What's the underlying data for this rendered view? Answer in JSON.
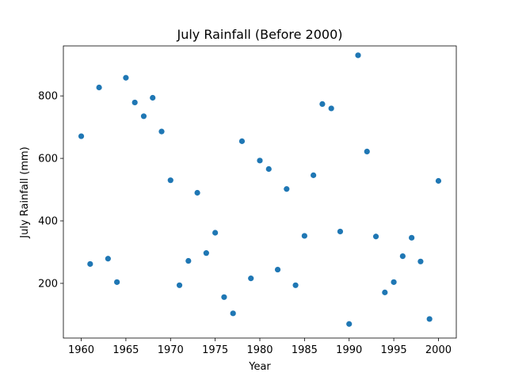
{
  "chart_data": {
    "type": "scatter",
    "title": "July Rainfall (Before 2000)",
    "xlabel": "Year",
    "ylabel": "July Rainfall (mm)",
    "xlim": [
      1958,
      2002
    ],
    "ylim": [
      25,
      960
    ],
    "xticks": [
      1960,
      1965,
      1970,
      1975,
      1980,
      1985,
      1990,
      1995,
      2000
    ],
    "yticks": [
      200,
      400,
      600,
      800
    ],
    "grid": false,
    "marker_color": "#1f77b4",
    "series": [
      {
        "x": [
          1960,
          1961,
          1962,
          1963,
          1964,
          1965,
          1966,
          1967,
          1968,
          1969,
          1970,
          1971,
          1972,
          1973,
          1974,
          1975,
          1976,
          1977,
          1978,
          1979,
          1980,
          1981,
          1982,
          1983,
          1984,
          1985,
          1986,
          1987,
          1988,
          1989,
          1990,
          1991,
          1992,
          1993,
          1994,
          1995,
          1996,
          1997,
          1998,
          1999,
          2000
        ],
        "y": [
          671,
          262,
          827,
          279,
          204,
          858,
          779,
          735,
          794,
          686,
          530,
          194,
          272,
          490,
          297,
          362,
          156,
          104,
          655,
          216,
          593,
          566,
          244,
          502,
          194,
          352,
          546,
          774,
          760,
          366,
          70,
          930,
          622,
          350,
          171,
          204,
          287,
          346,
          270,
          86,
          528
        ]
      }
    ]
  }
}
